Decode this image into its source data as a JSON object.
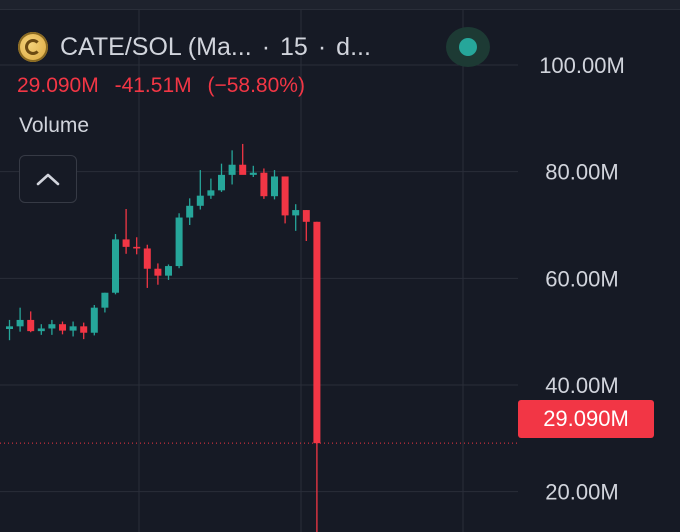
{
  "header": {
    "pair": "CATE/SOL (Ma...",
    "interval": "15",
    "exchange": "d...",
    "separator": "·"
  },
  "ohlc": {
    "last": "29.090M",
    "change": "-41.51M",
    "change_pct": "(−58.80%)"
  },
  "volume_label": "Volume",
  "icons": {
    "coin": "coin-logo-icon",
    "status": "market-status-dot-icon",
    "collapse": "chevron-up-icon"
  },
  "colors": {
    "background": "#161a25",
    "up": "#26a69a",
    "down": "#f23645",
    "grid": "#2a2e39",
    "text": "#d1d4dc"
  },
  "current_price_label": "29.090M",
  "chart_data": {
    "type": "candlestick",
    "y_unit": "M",
    "ylim": [
      14.5,
      104.5
    ],
    "y_ticks": [
      20,
      40,
      60,
      80,
      100
    ],
    "y_tick_labels": [
      "20.00M",
      "40.00M",
      "60.00M",
      "80.00M",
      "100.00M"
    ],
    "current_price": 29.09,
    "grid": true,
    "candles": [
      {
        "o": 50.5,
        "h": 52.2,
        "l": 48.4,
        "c": 51.0
      },
      {
        "o": 51.0,
        "h": 54.5,
        "l": 50.0,
        "c": 52.2
      },
      {
        "o": 52.2,
        "h": 53.8,
        "l": 49.9,
        "c": 50.1
      },
      {
        "o": 50.1,
        "h": 51.4,
        "l": 49.4,
        "c": 50.6
      },
      {
        "o": 50.6,
        "h": 52.2,
        "l": 49.4,
        "c": 51.4
      },
      {
        "o": 51.4,
        "h": 51.9,
        "l": 49.5,
        "c": 50.2
      },
      {
        "o": 50.2,
        "h": 51.9,
        "l": 49.1,
        "c": 51.0
      },
      {
        "o": 51.0,
        "h": 51.7,
        "l": 48.6,
        "c": 49.8
      },
      {
        "o": 49.8,
        "h": 55.0,
        "l": 49.3,
        "c": 54.5
      },
      {
        "o": 54.5,
        "h": 57.3,
        "l": 53.6,
        "c": 57.3
      },
      {
        "o": 57.3,
        "h": 68.3,
        "l": 57.0,
        "c": 67.3
      },
      {
        "o": 67.3,
        "h": 73.0,
        "l": 64.6,
        "c": 65.9
      },
      {
        "o": 65.9,
        "h": 67.7,
        "l": 64.5,
        "c": 65.6
      },
      {
        "o": 65.6,
        "h": 66.3,
        "l": 58.2,
        "c": 61.8
      },
      {
        "o": 61.8,
        "h": 62.8,
        "l": 58.8,
        "c": 60.5
      },
      {
        "o": 60.5,
        "h": 62.6,
        "l": 59.7,
        "c": 62.3
      },
      {
        "o": 62.3,
        "h": 72.2,
        "l": 61.9,
        "c": 71.4
      },
      {
        "o": 71.4,
        "h": 75.0,
        "l": 70.0,
        "c": 73.6
      },
      {
        "o": 73.6,
        "h": 80.3,
        "l": 72.9,
        "c": 75.5
      },
      {
        "o": 75.5,
        "h": 78.7,
        "l": 74.9,
        "c": 76.5
      },
      {
        "o": 76.5,
        "h": 81.5,
        "l": 76.2,
        "c": 79.4
      },
      {
        "o": 79.4,
        "h": 84.0,
        "l": 77.6,
        "c": 81.3
      },
      {
        "o": 81.3,
        "h": 85.2,
        "l": 79.7,
        "c": 79.4
      },
      {
        "o": 79.4,
        "h": 81.1,
        "l": 79.0,
        "c": 79.8
      },
      {
        "o": 79.8,
        "h": 80.6,
        "l": 74.9,
        "c": 75.4
      },
      {
        "o": 75.4,
        "h": 80.3,
        "l": 74.8,
        "c": 79.1
      },
      {
        "o": 79.1,
        "h": 79.1,
        "l": 70.3,
        "c": 71.8
      },
      {
        "o": 71.8,
        "h": 73.9,
        "l": 68.9,
        "c": 72.8
      },
      {
        "o": 72.8,
        "h": 72.8,
        "l": 67.0,
        "c": 70.6
      },
      {
        "o": 70.6,
        "h": 70.6,
        "l": 10.0,
        "c": 29.09
      }
    ]
  }
}
